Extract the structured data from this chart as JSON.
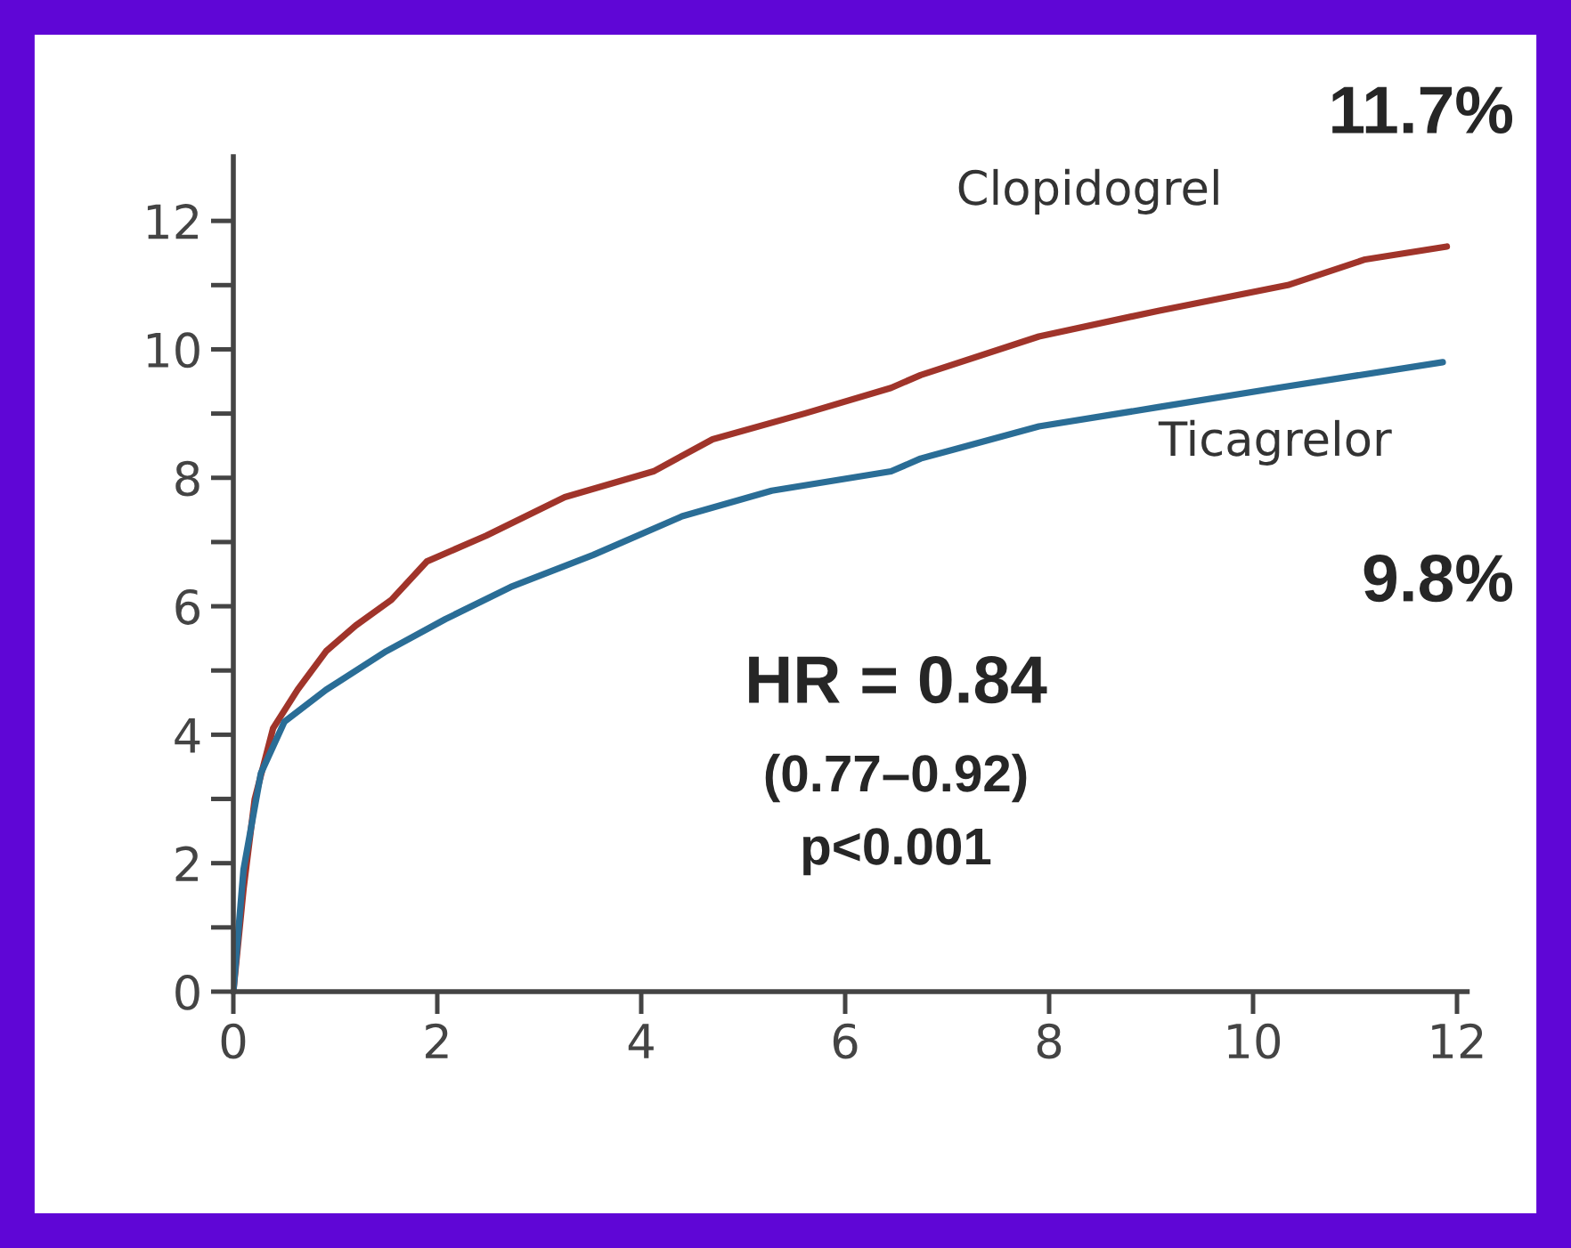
{
  "chart_data": {
    "type": "line",
    "xlim": [
      0,
      12.1
    ],
    "ylim": [
      0,
      13
    ],
    "xticks": [
      0,
      2,
      4,
      6,
      8,
      10,
      12
    ],
    "yticks": [
      0,
      {
        "value": 1,
        "label": null
      },
      2,
      {
        "value": 3,
        "label": null
      },
      4,
      {
        "value": 5,
        "label": null
      },
      6,
      {
        "value": 7,
        "label": null
      },
      8,
      {
        "value": 9,
        "label": null
      },
      10,
      {
        "value": 11,
        "label": null
      },
      12
    ],
    "grid": false,
    "legend": false,
    "marker": "none",
    "line_style": "solid",
    "series": [
      {
        "name": "Clopidogrel",
        "color": "#a0342a",
        "x": [
          0,
          0.1,
          0.21,
          0.39,
          0.63,
          0.91,
          1.2,
          1.55,
          1.9,
          2.48,
          3.25,
          4.12,
          4.7,
          5.6,
          6.45,
          6.74,
          7.9,
          9.07,
          10.34,
          11.1,
          11.9
        ],
        "values": [
          0,
          1.6,
          3.0,
          4.1,
          4.7,
          5.3,
          5.7,
          6.1,
          6.7,
          7.1,
          7.7,
          8.1,
          8.6,
          9.0,
          9.4,
          9.6,
          10.2,
          10.6,
          11.0,
          11.4,
          11.6
        ]
      },
      {
        "name": "Ticagrelor",
        "color": "#2a6d96",
        "x": [
          0,
          0.1,
          0.27,
          0.5,
          0.91,
          1.5,
          2.08,
          2.72,
          3.53,
          4.4,
          5.28,
          6.45,
          6.74,
          7.9,
          9.07,
          10.24,
          11.86
        ],
        "values": [
          0,
          1.9,
          3.4,
          4.2,
          4.7,
          5.3,
          5.8,
          6.3,
          6.8,
          7.4,
          7.8,
          8.1,
          8.3,
          8.8,
          9.1,
          9.4,
          9.8
        ]
      }
    ],
    "annotations": [
      "11.7%",
      "9.8%",
      "HR = 0.84",
      "(0.77–0.92)",
      "p<0.001"
    ]
  }
}
